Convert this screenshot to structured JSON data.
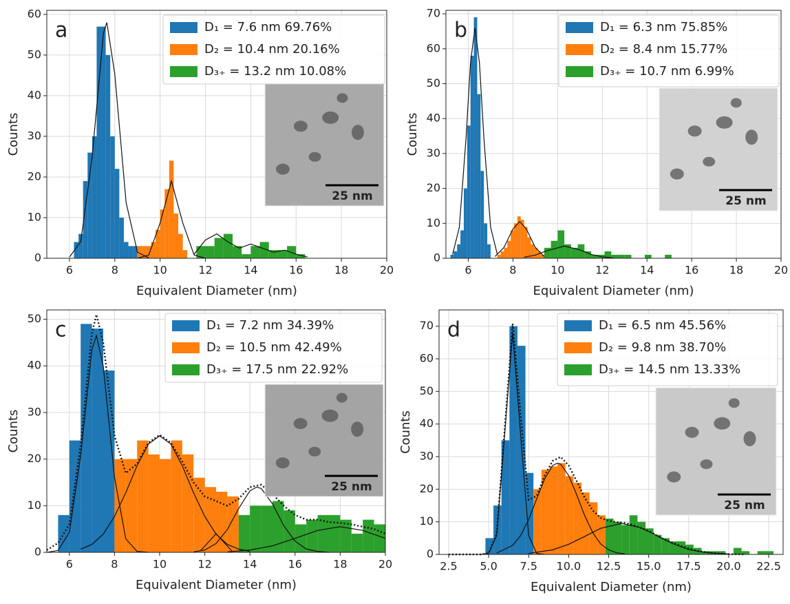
{
  "chart_data": [
    {
      "type": "histogram",
      "label": "a",
      "xlabel": "Equivalent Diameter (nm)",
      "ylabel": "Counts",
      "xlim": [
        5,
        20
      ],
      "xticks": [
        6,
        8,
        10,
        12,
        14,
        16,
        18,
        20
      ],
      "ylim": [
        0,
        61
      ],
      "yticks": [
        0,
        10,
        20,
        30,
        40,
        50,
        60
      ],
      "grid": true,
      "legend": "upper right",
      "inset_scale": "25 nm",
      "series": [
        {
          "name": "D₁ = 7.6 nm 69.76%",
          "color": "#1f77b4",
          "bins": [
            6.2,
            6.4,
            6.6,
            6.8,
            7.0,
            7.2,
            7.4,
            7.6,
            7.8,
            8.0,
            8.2,
            8.4,
            8.6,
            8.8,
            9.0
          ],
          "values": [
            4,
            6,
            19,
            26,
            30,
            57,
            57,
            50,
            30,
            22,
            10,
            4,
            3,
            3
          ]
        },
        {
          "name": "D₂ = 10.4 nm 20.16%",
          "color": "#ff7f0e",
          "bins": [
            9.0,
            9.2,
            9.4,
            9.6,
            9.8,
            10.0,
            10.2,
            10.4,
            10.6,
            10.8,
            11.0,
            11.2
          ],
          "values": [
            3,
            3,
            3,
            4,
            7,
            12,
            17,
            24,
            11,
            6,
            2
          ]
        },
        {
          "name": "D₃₊ = 13.2 nm 10.08%",
          "color": "#2ca02c",
          "bins": [
            11.6,
            12.0,
            12.4,
            12.8,
            13.2,
            13.6,
            14.0,
            14.4,
            14.8,
            15.2,
            15.6,
            16.0,
            16.4
          ],
          "values": [
            3,
            3,
            5,
            6,
            3,
            1,
            3,
            4,
            2,
            2,
            3,
            1
          ]
        }
      ],
      "fits": [
        {
          "style": "solid",
          "x": [
            6,
            6.5,
            7,
            7.5,
            7.65,
            8,
            8.5,
            9,
            9.5
          ],
          "values": [
            0.3,
            4.1,
            24.9,
            55.4,
            58,
            45.3,
            13.7,
            1.5,
            0.1
          ]
        },
        {
          "style": "solid",
          "x": [
            9,
            9.5,
            10,
            10.5,
            11,
            11.5,
            12
          ],
          "values": [
            0,
            0.8,
            8.7,
            19,
            8.7,
            0.8,
            0
          ]
        },
        {
          "style": "solid",
          "x": [
            11.5,
            12,
            12.5,
            13,
            13.5,
            14,
            14.5,
            15,
            15.5,
            16,
            16.5
          ],
          "values": [
            1,
            4.5,
            6,
            4,
            2.5,
            3.5,
            2.5,
            1.5,
            2,
            1,
            0.3
          ]
        }
      ]
    },
    {
      "type": "histogram",
      "label": "b",
      "xlabel": "Equivalent Diameter (nm)",
      "ylabel": "Counts",
      "xlim": [
        5,
        20
      ],
      "xticks": [
        6,
        8,
        10,
        12,
        14,
        16,
        18,
        20
      ],
      "ylim": [
        0,
        71
      ],
      "yticks": [
        0,
        10,
        20,
        30,
        40,
        50,
        60,
        70
      ],
      "grid": true,
      "legend": "upper right",
      "inset_scale": "25 nm",
      "series": [
        {
          "name": "D₁ = 6.3 nm 75.85%",
          "color": "#1f77b4",
          "bins": [
            5.2,
            5.35,
            5.5,
            5.65,
            5.8,
            5.95,
            6.1,
            6.25,
            6.4,
            6.55,
            6.7,
            6.85,
            7.0
          ],
          "values": [
            1,
            2,
            4,
            8,
            20,
            38,
            58,
            69,
            47,
            25,
            10,
            4
          ]
        },
        {
          "name": "D₂ = 8.4 nm 15.77%",
          "color": "#ff7f0e",
          "bins": [
            7.3,
            7.45,
            7.6,
            7.75,
            7.9,
            8.05,
            8.2,
            8.35,
            8.5,
            8.65,
            8.8,
            8.95,
            9.1,
            9.25,
            9.4
          ],
          "values": [
            1,
            2,
            3,
            5,
            8,
            10,
            12,
            11,
            9,
            6,
            4,
            3,
            2,
            1
          ]
        },
        {
          "name": "D₃₊ = 10.7 nm 6.99%",
          "color": "#2ca02c",
          "bins": [
            9.4,
            9.7,
            10.0,
            10.3,
            10.6,
            10.9,
            11.2,
            11.5,
            11.8,
            12.1,
            12.4,
            12.7,
            13.0,
            13.3,
            13.6,
            13.9,
            14.2,
            14.5,
            14.8,
            15.1
          ],
          "values": [
            3,
            5,
            8,
            4,
            3,
            4,
            2,
            1,
            1,
            2,
            1,
            1,
            1,
            0,
            0,
            1,
            0,
            0,
            1
          ]
        }
      ],
      "fits": [
        {
          "style": "solid",
          "x": [
            5.3,
            5.6,
            5.9,
            6.1,
            6.3,
            6.5,
            6.7,
            7.0,
            7.3
          ],
          "values": [
            1.1,
            8.9,
            34.4,
            56,
            66,
            56,
            34.4,
            8.9,
            1.1
          ]
        },
        {
          "style": "solid",
          "x": [
            7.2,
            7.6,
            8.0,
            8.3,
            8.6,
            9.0,
            9.4
          ],
          "values": [
            0.5,
            3.1,
            8.4,
            10.5,
            8.4,
            3.1,
            0.5
          ]
        },
        {
          "style": "solid",
          "x": [
            8.5,
            9,
            9.5,
            10.3,
            11,
            11.5,
            12,
            12.5
          ],
          "values": [
            0.3,
            0.9,
            2.1,
            3.5,
            2.4,
            1.1,
            0.4,
            0.1
          ]
        }
      ]
    },
    {
      "type": "histogram",
      "label": "c",
      "xlabel": "Equivalent Diameter (nm)",
      "ylabel": "Counts",
      "xlim": [
        5,
        20
      ],
      "xticks": [
        6,
        8,
        10,
        12,
        14,
        16,
        18,
        20
      ],
      "ylim": [
        0,
        52
      ],
      "yticks": [
        0,
        10,
        20,
        30,
        40,
        50
      ],
      "grid": true,
      "legend": "upper right",
      "inset_scale": "25 nm",
      "series": [
        {
          "name": "D₁ = 7.2 nm 34.39%",
          "color": "#1f77b4",
          "bins": [
            5.5,
            6,
            6.5,
            7,
            7.5,
            8
          ],
          "values": [
            8,
            24,
            49,
            48,
            39
          ]
        },
        {
          "name": "D₂ = 10.5 nm 42.49%",
          "color": "#ff7f0e",
          "bins": [
            8,
            8.5,
            9,
            9.5,
            10,
            10.5,
            11,
            11.5,
            12,
            12.5,
            13,
            13.5
          ],
          "values": [
            20,
            20,
            24,
            21,
            20,
            24,
            21,
            16,
            14,
            13,
            12
          ]
        },
        {
          "name": "D₃₊ = 17.5 nm 22.92%",
          "color": "#2ca02c",
          "bins": [
            13.5,
            14,
            14.5,
            15,
            15.5,
            16,
            16.5,
            17,
            17.5,
            18,
            18.5,
            19,
            19.5,
            20
          ],
          "values": [
            8,
            10,
            10,
            11,
            9,
            6,
            7,
            8,
            8,
            7,
            4,
            7,
            6
          ]
        }
      ],
      "fits": [
        {
          "style": "solid",
          "x": [
            5,
            5.5,
            6,
            6.5,
            7,
            7.2,
            7.5,
            8,
            8.5,
            9,
            9.5
          ],
          "values": [
            0,
            0.4,
            4.3,
            20.7,
            43.5,
            46.5,
            40,
            16.1,
            2.9,
            0.2,
            0
          ]
        },
        {
          "style": "solid",
          "x": [
            6.5,
            7,
            7.5,
            8,
            8.5,
            9,
            9.5,
            10,
            10.5,
            11,
            11.5,
            12,
            12.5,
            13,
            13.5,
            14
          ],
          "values": [
            0.7,
            1.7,
            3.9,
            7.7,
            12.8,
            18.6,
            23.2,
            25,
            23.2,
            18.6,
            12.8,
            7.7,
            3.9,
            1.7,
            0.7,
            0.2
          ]
        },
        {
          "style": "solid",
          "x": [
            11.8,
            12.2,
            12.5,
            12.8,
            13.2
          ],
          "values": [
            0.3,
            2.4,
            4,
            2.4,
            0.3
          ]
        },
        {
          "style": "solid",
          "x": [
            11.5,
            12,
            12.5,
            13,
            13.5,
            14,
            14.3,
            14.5,
            15,
            15.5,
            16,
            16.5,
            17,
            17.5
          ],
          "values": [
            0.1,
            0.5,
            1.9,
            4.9,
            9.4,
            13.2,
            14,
            13.7,
            10.4,
            5.7,
            2.4,
            0.7,
            0.2,
            0
          ]
        },
        {
          "style": "solid",
          "x": [
            13,
            14,
            15,
            16,
            17,
            18,
            19,
            20
          ],
          "values": [
            0.1,
            0.5,
            1.4,
            3,
            4.7,
            5.5,
            4.7,
            3
          ]
        },
        {
          "style": "dotted",
          "x": [
            5,
            5.5,
            6,
            6.5,
            7,
            7.2,
            7.5,
            8,
            8.5,
            9,
            9.5,
            10,
            10.5,
            11,
            11.5,
            12,
            12.5,
            13,
            13.5,
            14,
            14.5,
            15,
            15.5,
            16,
            16.5,
            17,
            17.5,
            18,
            18.5,
            19,
            19.5,
            20
          ],
          "values": [
            0.5,
            2,
            6,
            23,
            47,
            51,
            45,
            25,
            17,
            19,
            23.5,
            25.2,
            23.5,
            19.5,
            15,
            12,
            11,
            10,
            11.5,
            14,
            14.5,
            12.5,
            10,
            8,
            7,
            7,
            6.5,
            6.3,
            6,
            5.5,
            5,
            4
          ]
        }
      ]
    },
    {
      "type": "histogram",
      "label": "d",
      "xlabel": "Equivalent Diameter (nm)",
      "ylabel": "Counts",
      "xlim": [
        1.9,
        23.4
      ],
      "xticks": [
        2.5,
        {
          "value": 5,
          "label": "5.0"
        },
        7.5,
        {
          "value": 10,
          "label": "10.0"
        },
        12.5,
        {
          "value": 15,
          "label": "15.0"
        },
        17.5,
        {
          "value": 20,
          "label": "20.0"
        },
        22.5
      ],
      "ylim": [
        0,
        75
      ],
      "yticks": [
        0,
        10,
        20,
        30,
        40,
        50,
        60,
        70
      ],
      "grid": true,
      "legend": "upper right",
      "inset_scale": "25 nm",
      "series": [
        {
          "name": "D₁ = 6.5 nm 45.56%",
          "color": "#1f77b4",
          "bins": [
            4.8,
            5.3,
            5.8,
            6.3,
            6.8,
            7.3,
            7.8
          ],
          "values": [
            5,
            15,
            35,
            70,
            64,
            25
          ]
        },
        {
          "name": "D₂ = 9.8 nm 38.70%",
          "color": "#ff7f0e",
          "bins": [
            7.8,
            8.3,
            8.8,
            9.3,
            9.8,
            10.3,
            10.8,
            11.3,
            11.8,
            12.3
          ],
          "values": [
            20,
            26,
            27,
            28,
            24,
            22,
            19,
            16,
            12
          ]
        },
        {
          "name": "D₃₊ = 14.5 nm 13.33%",
          "color": "#2ca02c",
          "bins": [
            12.3,
            12.8,
            13.3,
            13.8,
            14.3,
            14.8,
            15.3,
            15.8,
            16.3,
            16.8,
            17.3,
            17.8,
            18.3,
            18.8,
            19.3,
            19.8,
            20.3,
            20.8,
            21.3,
            21.8,
            22.3,
            22.8
          ],
          "values": [
            11,
            10,
            9,
            12,
            10,
            8,
            6,
            5,
            4,
            4,
            3,
            2,
            1,
            1,
            1,
            0,
            2,
            1,
            0,
            1,
            1
          ]
        }
      ],
      "fits": [
        {
          "style": "solid",
          "x": [
            4.5,
            5,
            5.5,
            6,
            6.5,
            7,
            7.5,
            8,
            8.5
          ],
          "values": [
            0,
            0.3,
            5.8,
            36.7,
            68,
            36.7,
            5.8,
            0.3,
            0
          ]
        },
        {
          "style": "solid",
          "x": [
            5.5,
            6.5,
            7,
            7.5,
            8,
            8.5,
            9,
            9.3,
            9.5,
            10,
            10.5,
            11,
            11.5,
            12,
            12.5,
            13,
            13.5
          ],
          "values": [
            0.4,
            2.8,
            5.8,
            10.7,
            17,
            23.2,
            27.3,
            28,
            27.7,
            24.2,
            18.3,
            11.9,
            6.7,
            3.2,
            1.4,
            0.5,
            0.2
          ]
        },
        {
          "style": "solid",
          "x": [
            7.5,
            9,
            10,
            11,
            12,
            13.3,
            14.5,
            15.5,
            16.5,
            17.5,
            18.5,
            20
          ],
          "values": [
            0.3,
            1.4,
            3.1,
            5.5,
            8,
            9.5,
            8.2,
            5.8,
            3.3,
            1.5,
            0.6,
            0.1
          ]
        },
        {
          "style": "dotted",
          "x": [
            2.5,
            4.5,
            5,
            5.5,
            6,
            6.5,
            7,
            7.5,
            8,
            8.5,
            9,
            9.5,
            10,
            10.5,
            11,
            11.5,
            12,
            12.5,
            13,
            13.5,
            14,
            15,
            16,
            17,
            18,
            19,
            20,
            21
          ],
          "values": [
            0,
            0,
            0.4,
            6.2,
            38.2,
            70.8,
            42.5,
            16.8,
            17.9,
            24.2,
            28.7,
            29.9,
            27.3,
            22.5,
            17.4,
            13.5,
            11.2,
            10.3,
            9.9,
            9.7,
            9.1,
            7.2,
            4.5,
            2.6,
            1.1,
            0.4,
            0.1,
            0
          ]
        }
      ]
    }
  ]
}
